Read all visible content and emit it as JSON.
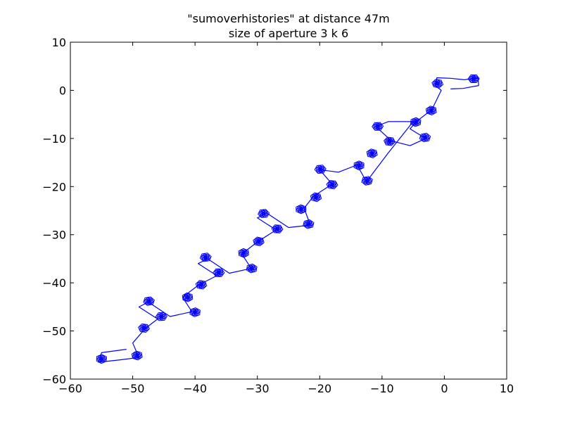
{
  "chart_data": {
    "type": "line",
    "title": "\"sumoverhistories\" at distance 47m",
    "subtitle": "size of aperture 3 k 6",
    "xlabel": "",
    "ylabel": "",
    "xlim": [
      -60,
      10
    ],
    "ylim": [
      -60,
      10
    ],
    "x_ticks": [
      -60,
      -50,
      -40,
      -30,
      -20,
      -10,
      0,
      10
    ],
    "y_ticks": [
      -60,
      -50,
      -40,
      -30,
      -20,
      -10,
      0,
      10
    ],
    "x_tick_labels": [
      "−60",
      "−50",
      "−40",
      "−30",
      "−20",
      "−10",
      "0",
      "10"
    ],
    "y_tick_labels": [
      "−60",
      "−50",
      "−40",
      "−30",
      "−20",
      "−10",
      "0",
      "10"
    ],
    "grid": false,
    "line_color": "#0000ff",
    "series": [
      {
        "path": [
          [
            1.0,
            0.3
          ],
          [
            3.0,
            0.4
          ],
          [
            5.5,
            1.0
          ],
          [
            5.4,
            2.6
          ],
          [
            3.2,
            2.2
          ],
          [
            1.0,
            2.5
          ],
          [
            -1.2,
            2.6
          ],
          [
            -1.5,
            1.0
          ],
          [
            -0.5,
            0.0
          ],
          [
            -2.0,
            -4.0
          ],
          [
            -4.5,
            -6.5
          ],
          [
            -5.5,
            -8.0
          ],
          [
            -3.0,
            -10.0
          ],
          [
            -5.5,
            -11.5
          ],
          [
            -8.5,
            -10.5
          ],
          [
            -11.0,
            -7.5
          ],
          [
            -9.0,
            -6.5
          ],
          [
            -5.0,
            -6.5
          ],
          [
            -9.0,
            -13.0
          ],
          [
            -12.5,
            -19.0
          ],
          [
            -14.0,
            -15.5
          ],
          [
            -17.0,
            -17.0
          ],
          [
            -20.0,
            -16.5
          ],
          [
            -18.0,
            -19.5
          ],
          [
            -21.0,
            -22.0
          ],
          [
            -22.5,
            -24.5
          ],
          [
            -21.5,
            -28.0
          ],
          [
            -25.0,
            -28.5
          ],
          [
            -28.5,
            -25.5
          ],
          [
            -30.0,
            -26.5
          ],
          [
            -27.0,
            -29.0
          ],
          [
            -30.0,
            -31.5
          ],
          [
            -32.5,
            -34.0
          ],
          [
            -31.0,
            -37.0
          ],
          [
            -34.5,
            -38.0
          ],
          [
            -38.0,
            -35.0
          ],
          [
            -39.5,
            -36.0
          ],
          [
            -36.5,
            -38.5
          ],
          [
            -39.5,
            -40.5
          ],
          [
            -42.0,
            -43.0
          ],
          [
            -40.5,
            -46.0
          ],
          [
            -44.0,
            -47.0
          ],
          [
            -47.5,
            -44.0
          ],
          [
            -49.0,
            -45.0
          ],
          [
            -46.0,
            -47.5
          ],
          [
            -48.0,
            -49.5
          ],
          [
            -50.0,
            -52.5
          ],
          [
            -49.0,
            -55.5
          ],
          [
            -52.0,
            -56.0
          ],
          [
            -55.5,
            -56.5
          ],
          [
            -55.0,
            -54.5
          ],
          [
            -51.0,
            -53.8
          ]
        ]
      }
    ],
    "clusters": [
      [
        4.7,
        2.4
      ],
      [
        -1.1,
        1.4
      ],
      [
        -2.1,
        -4.2
      ],
      [
        -4.6,
        -6.6
      ],
      [
        -3.1,
        -9.8
      ],
      [
        -10.7,
        -7.5
      ],
      [
        -8.8,
        -10.6
      ],
      [
        -11.6,
        -13.1
      ],
      [
        -13.7,
        -15.6
      ],
      [
        -12.4,
        -18.8
      ],
      [
        -19.9,
        -16.4
      ],
      [
        -18.0,
        -19.6
      ],
      [
        -20.6,
        -22.2
      ],
      [
        -23.0,
        -24.7
      ],
      [
        -21.8,
        -27.8
      ],
      [
        -29.0,
        -25.6
      ],
      [
        -26.8,
        -28.8
      ],
      [
        -29.8,
        -31.4
      ],
      [
        -32.2,
        -33.8
      ],
      [
        -30.9,
        -37.0
      ],
      [
        -38.3,
        -34.7
      ],
      [
        -36.2,
        -37.9
      ],
      [
        -39.0,
        -40.4
      ],
      [
        -41.2,
        -43.0
      ],
      [
        -40.0,
        -46.1
      ],
      [
        -47.4,
        -43.8
      ],
      [
        -45.4,
        -47.0
      ],
      [
        -48.2,
        -49.4
      ],
      [
        -49.3,
        -55.1
      ],
      [
        -55.0,
        -55.8
      ]
    ]
  }
}
